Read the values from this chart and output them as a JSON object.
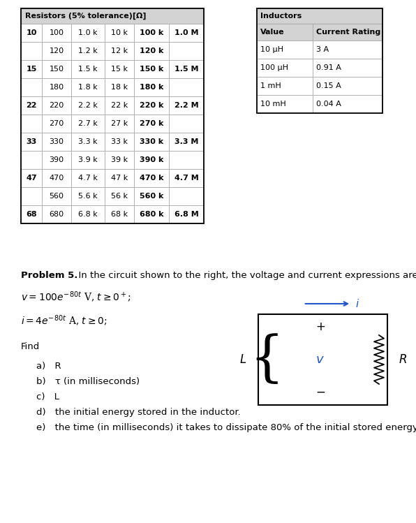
{
  "resistor_title": "Resistors (5% tolerance)[Ω]",
  "resistor_rows": [
    [
      "10",
      "100",
      "1.0 k",
      "10 k",
      "100 k",
      "1.0 M"
    ],
    [
      "",
      "120",
      "1.2 k",
      "12 k",
      "120 k",
      ""
    ],
    [
      "15",
      "150",
      "1.5 k",
      "15 k",
      "150 k",
      "1.5 M"
    ],
    [
      "",
      "180",
      "1.8 k",
      "18 k",
      "180 k",
      ""
    ],
    [
      "22",
      "220",
      "2.2 k",
      "22 k",
      "220 k",
      "2.2 M"
    ],
    [
      "",
      "270",
      "2.7 k",
      "27 k",
      "270 k",
      ""
    ],
    [
      "33",
      "330",
      "3.3 k",
      "33 k",
      "330 k",
      "3.3 M"
    ],
    [
      "",
      "390",
      "3.9 k",
      "39 k",
      "390 k",
      ""
    ],
    [
      "47",
      "470",
      "4.7 k",
      "47 k",
      "470 k",
      "4.7 M"
    ],
    [
      "",
      "560",
      "5.6 k",
      "56 k",
      "560 k",
      ""
    ],
    [
      "68",
      "680",
      "6.8 k",
      "68 k",
      "680 k",
      "6.8 M"
    ]
  ],
  "inductor_title": "Inductors",
  "inductor_headers": [
    "Value",
    "Current Rating"
  ],
  "inductor_rows": [
    [
      "10 μH",
      "3 A"
    ],
    [
      "100 μH",
      "0.91 A"
    ],
    [
      "1 mH",
      "0.15 A"
    ],
    [
      "10 mH",
      "0.04 A"
    ]
  ],
  "header_bg": "#d3d3d3",
  "border_color": "#aaaaaa",
  "text_color": "#000000",
  "fig_bg": "#ffffff",
  "find_items": [
    "a) R",
    "b) τ (in milliseconds)",
    "c) L",
    "d) the initial energy stored in the inductor.",
    "e) the time (in milliseconds) it takes to dissipate 80% of the initial stored energy."
  ]
}
